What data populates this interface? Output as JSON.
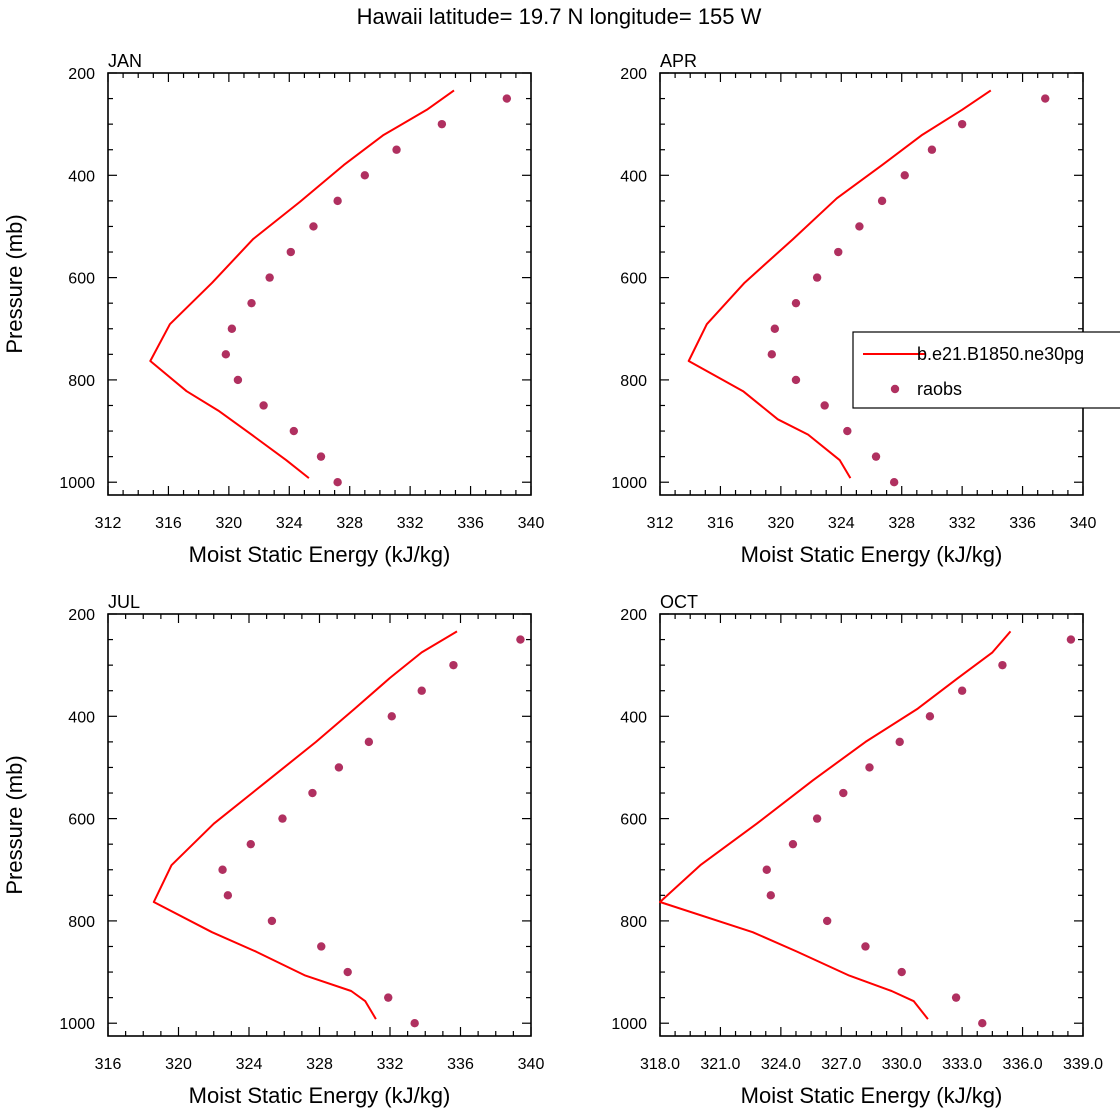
{
  "title": "Hawaii  latitude= 19.7 N longitude= 155 W",
  "legend": {
    "placement": "right-of-APR-panel",
    "entries": [
      {
        "label": "b.e21.B1850.ne30pg",
        "kind": "line",
        "color": "#ff0000"
      },
      {
        "label": "raobs",
        "kind": "marker",
        "color": "#b03060"
      }
    ]
  },
  "chart_data": [
    {
      "type": "line",
      "panel": "JAN",
      "xlabel": "Moist Static Energy (kJ/kg)",
      "ylabel": "Pressure (mb)",
      "xlim": [
        312,
        340
      ],
      "ylim": [
        1025,
        200
      ],
      "xticks": [
        312,
        316,
        320,
        324,
        328,
        332,
        336,
        340
      ],
      "xtick_labels": [
        "312",
        "316",
        "320",
        "324",
        "328",
        "332",
        "336",
        "340"
      ],
      "yticks": [
        200,
        400,
        600,
        800,
        1000
      ],
      "grid": false,
      "series": [
        {
          "name": "b.e21.B1850.ne30pg",
          "kind": "line",
          "color": "#ff0000",
          "x": [
            325.3,
            323.8,
            321.5,
            319.3,
            317.2,
            314.8,
            316.1,
            318.9,
            321.6,
            324.7,
            327.6,
            330.2,
            333.1,
            334.9
          ],
          "y": [
            992,
            957,
            907,
            860,
            822,
            763,
            691,
            610,
            525,
            452,
            380,
            322,
            272,
            234
          ]
        },
        {
          "name": "raobs",
          "kind": "scatter",
          "color": "#b03060",
          "x": [
            327.2,
            326.1,
            324.3,
            322.3,
            320.6,
            319.8,
            320.2,
            321.5,
            322.7,
            324.1,
            325.6,
            327.2,
            329.0,
            331.1,
            334.1,
            338.4
          ],
          "y": [
            1000,
            950,
            900,
            850,
            800,
            750,
            700,
            650,
            600,
            550,
            500,
            450,
            400,
            350,
            300,
            250
          ]
        }
      ]
    },
    {
      "type": "line",
      "panel": "APR",
      "xlabel": "Moist Static Energy (kJ/kg)",
      "ylabel": "",
      "xlim": [
        312,
        340
      ],
      "ylim": [
        1025,
        200
      ],
      "xticks": [
        312,
        316,
        320,
        324,
        328,
        332,
        336,
        340
      ],
      "xtick_labels": [
        "312",
        "316",
        "320",
        "324",
        "328",
        "332",
        "336",
        "340"
      ],
      "yticks": [
        200,
        400,
        600,
        800,
        1000
      ],
      "grid": false,
      "series": [
        {
          "name": "b.e21.B1850.ne30pg",
          "kind": "line",
          "color": "#ff0000",
          "x": [
            324.6,
            323.9,
            321.8,
            319.8,
            317.5,
            313.9,
            315.1,
            317.6,
            320.8,
            323.7,
            326.7,
            329.3,
            332.0,
            333.9
          ],
          "y": [
            992,
            957,
            907,
            877,
            822,
            763,
            691,
            610,
            525,
            445,
            380,
            322,
            272,
            234
          ]
        },
        {
          "name": "raobs",
          "kind": "scatter",
          "color": "#b03060",
          "x": [
            327.5,
            326.3,
            324.4,
            322.9,
            321.0,
            319.4,
            319.6,
            321.0,
            322.4,
            323.8,
            325.2,
            326.7,
            328.2,
            330.0,
            332.0,
            337.5
          ],
          "y": [
            1000,
            950,
            900,
            850,
            800,
            750,
            700,
            650,
            600,
            550,
            500,
            450,
            400,
            350,
            300,
            250
          ]
        }
      ]
    },
    {
      "type": "line",
      "panel": "JUL",
      "xlabel": "Moist Static Energy (kJ/kg)",
      "ylabel": "Pressure (mb)",
      "xlim": [
        316,
        340
      ],
      "ylim": [
        1025,
        200
      ],
      "xticks": [
        316,
        320,
        324,
        328,
        332,
        336,
        340
      ],
      "xtick_labels": [
        "316",
        "320",
        "324",
        "328",
        "332",
        "336",
        "340"
      ],
      "yticks": [
        200,
        400,
        600,
        800,
        1000
      ],
      "grid": false,
      "series": [
        {
          "name": "b.e21.B1850.ne30pg",
          "kind": "line",
          "color": "#ff0000",
          "x": [
            331.2,
            330.6,
            329.8,
            327.2,
            324.4,
            321.9,
            318.6,
            319.6,
            322.0,
            324.9,
            327.8,
            330.0,
            332.0,
            333.8,
            335.8
          ],
          "y": [
            992,
            957,
            937,
            907,
            860,
            822,
            763,
            691,
            610,
            530,
            450,
            385,
            325,
            275,
            234
          ]
        },
        {
          "name": "raobs",
          "kind": "scatter",
          "color": "#b03060",
          "x": [
            333.4,
            331.9,
            329.6,
            328.1,
            325.3,
            322.8,
            322.5,
            324.1,
            325.9,
            327.6,
            329.1,
            330.8,
            332.1,
            333.8,
            335.6,
            339.4
          ],
          "y": [
            1000,
            950,
            900,
            850,
            800,
            750,
            700,
            650,
            600,
            550,
            500,
            450,
            400,
            350,
            300,
            250
          ]
        }
      ]
    },
    {
      "type": "line",
      "panel": "OCT",
      "xlabel": "Moist Static Energy (kJ/kg)",
      "ylabel": "",
      "xlim": [
        318,
        339
      ],
      "ylim": [
        1025,
        200
      ],
      "xticks": [
        318,
        321,
        324,
        327,
        330,
        333,
        336,
        339
      ],
      "xtick_labels": [
        "318.0",
        "321.0",
        "324.0",
        "327.0",
        "330.0",
        "333.0",
        "336.0",
        "339.0"
      ],
      "yticks": [
        200,
        400,
        600,
        800,
        1000
      ],
      "grid": false,
      "series": [
        {
          "name": "b.e21.B1850.ne30pg",
          "kind": "line",
          "color": "#ff0000",
          "x": [
            331.3,
            330.6,
            329.5,
            327.4,
            324.8,
            322.6,
            318.0,
            320.0,
            322.8,
            325.6,
            328.2,
            330.8,
            332.8,
            334.5,
            335.4
          ],
          "y": [
            992,
            957,
            937,
            907,
            860,
            822,
            763,
            691,
            610,
            525,
            450,
            385,
            325,
            275,
            234
          ]
        },
        {
          "name": "raobs",
          "kind": "scatter",
          "color": "#b03060",
          "x": [
            334.0,
            332.7,
            330.0,
            328.2,
            326.3,
            323.5,
            323.3,
            324.6,
            325.8,
            327.1,
            328.4,
            329.9,
            331.4,
            333.0,
            335.0,
            338.4
          ],
          "y": [
            1000,
            950,
            900,
            850,
            800,
            750,
            700,
            650,
            600,
            550,
            500,
            450,
            400,
            350,
            300,
            250
          ]
        }
      ]
    }
  ]
}
